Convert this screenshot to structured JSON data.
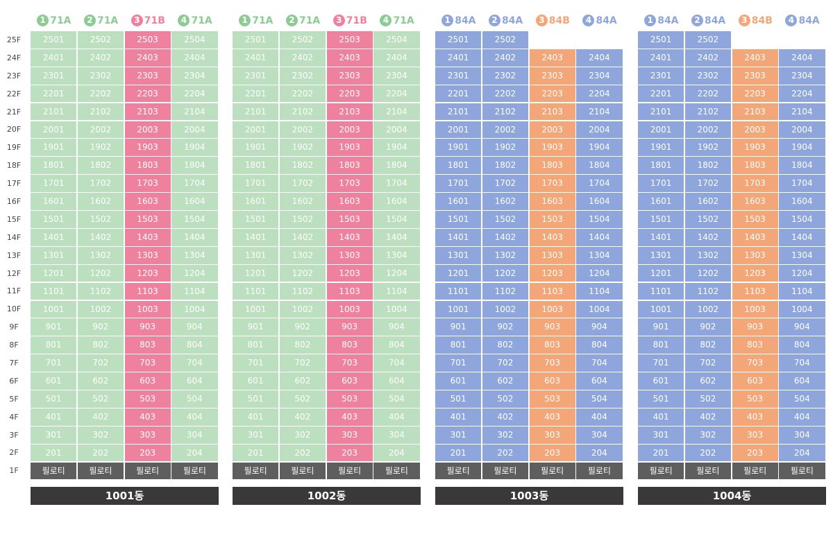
{
  "floors": [
    "25F",
    "24F",
    "23F",
    "22F",
    "21F",
    "20F",
    "19F",
    "18F",
    "17F",
    "16F",
    "15F",
    "14F",
    "13F",
    "12F",
    "11F",
    "10F",
    "9F",
    "8F",
    "7F",
    "6F",
    "5F",
    "4F",
    "3F",
    "2F",
    "1F"
  ],
  "pilotis_label": "필로티",
  "colors": {
    "green": "#bcdfbf",
    "green_text": "#8ccb92",
    "pink": "#ee829e",
    "pink_text": "#ee829e",
    "blue": "#8ea6db",
    "blue_text": "#8ea6db",
    "orange": "#f3a677",
    "orange_text": "#f3a677",
    "pilotis": "#5e5e5e",
    "building_bar": "#3a3838"
  },
  "buildings": [
    {
      "name": "1001동",
      "top_floor_units": 4,
      "types": [
        {
          "num": "1",
          "label": "71A",
          "color": "green"
        },
        {
          "num": "2",
          "label": "71A",
          "color": "green"
        },
        {
          "num": "3",
          "label": "71B",
          "color": "pink"
        },
        {
          "num": "4",
          "label": "71A",
          "color": "green"
        }
      ]
    },
    {
      "name": "1002동",
      "top_floor_units": 4,
      "types": [
        {
          "num": "1",
          "label": "71A",
          "color": "green"
        },
        {
          "num": "2",
          "label": "71A",
          "color": "green"
        },
        {
          "num": "3",
          "label": "71B",
          "color": "pink"
        },
        {
          "num": "4",
          "label": "71A",
          "color": "green"
        }
      ]
    },
    {
      "name": "1003동",
      "top_floor_units": 2,
      "types": [
        {
          "num": "1",
          "label": "84A",
          "color": "blue"
        },
        {
          "num": "2",
          "label": "84A",
          "color": "blue"
        },
        {
          "num": "3",
          "label": "84B",
          "color": "orange"
        },
        {
          "num": "4",
          "label": "84A",
          "color": "blue"
        }
      ]
    },
    {
      "name": "1004동",
      "top_floor_units": 2,
      "types": [
        {
          "num": "1",
          "label": "84A",
          "color": "blue"
        },
        {
          "num": "2",
          "label": "84A",
          "color": "blue"
        },
        {
          "num": "3",
          "label": "84B",
          "color": "orange"
        },
        {
          "num": "4",
          "label": "84A",
          "color": "blue"
        }
      ]
    }
  ]
}
